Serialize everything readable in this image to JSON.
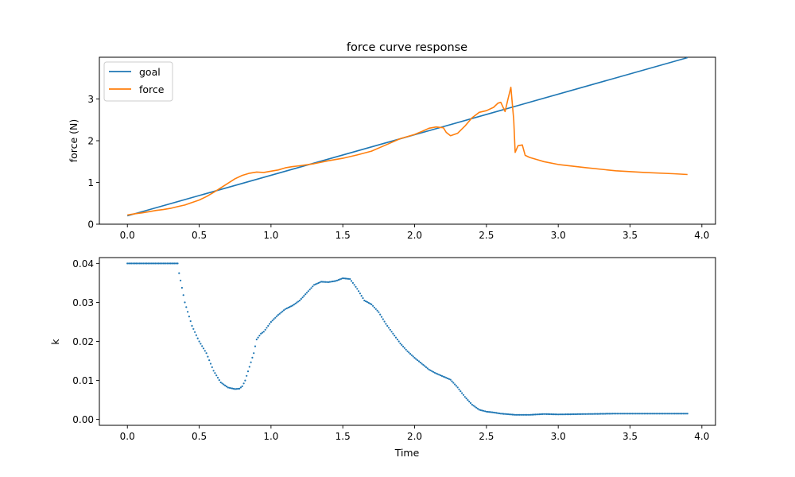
{
  "chart_data": [
    {
      "type": "line",
      "title": "force curve response",
      "xlabel": "",
      "ylabel": "force (N)",
      "xlim": [
        -0.195,
        4.095
      ],
      "ylim": [
        0,
        4
      ],
      "xticks": [
        "0.0",
        "0.5",
        "1.0",
        "1.5",
        "2.0",
        "2.5",
        "3.0",
        "3.5",
        "4.0"
      ],
      "yticks": [
        "0",
        "1",
        "2",
        "3"
      ],
      "legend_position": "upper-left",
      "series": [
        {
          "name": "goal",
          "color": "#1f77b4",
          "x": [
            0.0,
            3.9
          ],
          "y": [
            0.2,
            3.99
          ]
        },
        {
          "name": "force",
          "color": "#ff7f0e",
          "x": [
            0.0,
            0.05,
            0.1,
            0.15,
            0.2,
            0.25,
            0.3,
            0.35,
            0.4,
            0.45,
            0.5,
            0.55,
            0.6,
            0.65,
            0.7,
            0.75,
            0.8,
            0.85,
            0.9,
            0.95,
            1.0,
            1.05,
            1.1,
            1.15,
            1.2,
            1.3,
            1.4,
            1.5,
            1.6,
            1.7,
            1.8,
            1.9,
            2.0,
            2.05,
            2.1,
            2.15,
            2.2,
            2.22,
            2.25,
            2.3,
            2.35,
            2.4,
            2.45,
            2.5,
            2.55,
            2.58,
            2.6,
            2.63,
            2.65,
            2.67,
            2.69,
            2.7,
            2.72,
            2.75,
            2.77,
            2.8,
            2.85,
            2.9,
            3.0,
            3.2,
            3.4,
            3.6,
            3.8,
            3.9
          ],
          "y": [
            0.22,
            0.25,
            0.27,
            0.3,
            0.33,
            0.35,
            0.38,
            0.42,
            0.46,
            0.52,
            0.58,
            0.66,
            0.76,
            0.87,
            0.98,
            1.09,
            1.17,
            1.22,
            1.25,
            1.24,
            1.27,
            1.3,
            1.35,
            1.38,
            1.4,
            1.45,
            1.52,
            1.58,
            1.66,
            1.75,
            1.9,
            2.05,
            2.15,
            2.22,
            2.3,
            2.33,
            2.31,
            2.2,
            2.12,
            2.18,
            2.35,
            2.55,
            2.68,
            2.72,
            2.8,
            2.9,
            2.92,
            2.7,
            3.0,
            3.28,
            2.5,
            1.72,
            1.88,
            1.9,
            1.65,
            1.6,
            1.55,
            1.5,
            1.43,
            1.35,
            1.28,
            1.24,
            1.21,
            1.19
          ]
        }
      ]
    },
    {
      "type": "scatter",
      "title": "",
      "xlabel": "Time",
      "ylabel": "k",
      "xlim": [
        -0.195,
        4.095
      ],
      "ylim": [
        -0.0015,
        0.0415
      ],
      "xticks": [
        "0.0",
        "0.5",
        "1.0",
        "1.5",
        "2.0",
        "2.5",
        "3.0",
        "3.5",
        "4.0"
      ],
      "yticks": [
        "0.00",
        "0.01",
        "0.02",
        "0.03",
        "0.04"
      ],
      "series": [
        {
          "color": "#1f77b4",
          "x": [
            0.0,
            0.3,
            0.35,
            0.36,
            0.4,
            0.45,
            0.5,
            0.55,
            0.6,
            0.65,
            0.7,
            0.75,
            0.78,
            0.8,
            0.82,
            0.85,
            0.88,
            0.9,
            0.93,
            0.95,
            0.97,
            1.0,
            1.05,
            1.1,
            1.15,
            1.2,
            1.25,
            1.3,
            1.35,
            1.4,
            1.45,
            1.5,
            1.55,
            1.6,
            1.65,
            1.7,
            1.75,
            1.8,
            1.85,
            1.9,
            1.95,
            2.0,
            2.05,
            2.1,
            2.15,
            2.2,
            2.25,
            2.3,
            2.35,
            2.4,
            2.45,
            2.5,
            2.55,
            2.6,
            2.7,
            2.8,
            2.9,
            3.0,
            3.2,
            3.4,
            3.6,
            3.8,
            3.9
          ],
          "y": [
            0.04,
            0.04,
            0.04,
            0.0375,
            0.03,
            0.024,
            0.02,
            0.017,
            0.0125,
            0.0095,
            0.0082,
            0.0078,
            0.0079,
            0.0085,
            0.01,
            0.0135,
            0.017,
            0.0205,
            0.022,
            0.0225,
            0.0235,
            0.025,
            0.0268,
            0.0283,
            0.0292,
            0.0305,
            0.0325,
            0.0345,
            0.0353,
            0.0352,
            0.0355,
            0.0362,
            0.036,
            0.0335,
            0.0305,
            0.0295,
            0.0275,
            0.0245,
            0.022,
            0.0195,
            0.0175,
            0.0158,
            0.0143,
            0.0128,
            0.0118,
            0.011,
            0.0102,
            0.0082,
            0.0058,
            0.0038,
            0.0025,
            0.002,
            0.0018,
            0.0015,
            0.0012,
            0.0012,
            0.0014,
            0.0013,
            0.0014,
            0.0015,
            0.0015,
            0.0015,
            0.0015
          ]
        }
      ]
    }
  ]
}
